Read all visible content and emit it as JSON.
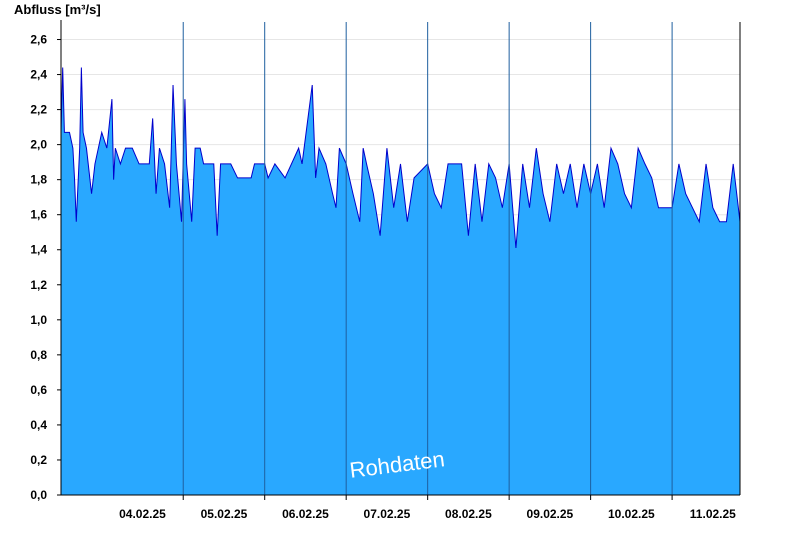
{
  "chart_data": {
    "type": "area",
    "ylabel": "Abfluss [m³/s]",
    "watermark": "Rohdaten",
    "ylim": [
      0,
      2.7
    ],
    "xlim": [
      "2025-02-03T12:00",
      "2025-02-11T20:00"
    ],
    "y_ticks": [
      "0,0",
      "0,2",
      "0,4",
      "0,6",
      "0,8",
      "1,0",
      "1,2",
      "1,4",
      "1,6",
      "1,8",
      "2,0",
      "2,2",
      "2,4",
      "2,6"
    ],
    "x_ticks": [
      "04.02.25",
      "05.02.25",
      "06.02.25",
      "07.02.25",
      "08.02.25",
      "09.02.25",
      "10.02.25",
      "11.02.25"
    ],
    "grid": true,
    "fill_color": "#29A8FF",
    "line_color": "#0000CC",
    "series": [
      {
        "values": [
          [
            "2025-02-03T12:00",
            2.07
          ],
          [
            "2025-02-03T12:30",
            2.44
          ],
          [
            "2025-02-03T13:00",
            2.07
          ],
          [
            "2025-02-03T14:30",
            2.07
          ],
          [
            "2025-02-03T15:30",
            1.98
          ],
          [
            "2025-02-03T16:00",
            1.8
          ],
          [
            "2025-02-03T16:30",
            1.56
          ],
          [
            "2025-02-03T17:30",
            1.98
          ],
          [
            "2025-02-03T18:00",
            2.44
          ],
          [
            "2025-02-03T18:30",
            2.07
          ],
          [
            "2025-02-03T19:30",
            1.98
          ],
          [
            "2025-02-03T21:00",
            1.72
          ],
          [
            "2025-02-03T22:00",
            1.89
          ],
          [
            "2025-02-04T00:00",
            2.07
          ],
          [
            "2025-02-04T01:30",
            1.98
          ],
          [
            "2025-02-04T03:00",
            2.26
          ],
          [
            "2025-02-04T03:30",
            1.8
          ],
          [
            "2025-02-04T04:00",
            1.98
          ],
          [
            "2025-02-04T05:30",
            1.89
          ],
          [
            "2025-02-04T07:00",
            1.98
          ],
          [
            "2025-02-04T09:00",
            1.98
          ],
          [
            "2025-02-04T11:00",
            1.89
          ],
          [
            "2025-02-04T14:00",
            1.89
          ],
          [
            "2025-02-04T15:00",
            2.15
          ],
          [
            "2025-02-04T16:00",
            1.72
          ],
          [
            "2025-02-04T17:00",
            1.98
          ],
          [
            "2025-02-04T18:30",
            1.89
          ],
          [
            "2025-02-04T20:00",
            1.64
          ],
          [
            "2025-02-04T21:00",
            2.34
          ],
          [
            "2025-02-04T22:00",
            1.89
          ],
          [
            "2025-02-04T23:30",
            1.56
          ],
          [
            "2025-02-05T00:30",
            2.26
          ],
          [
            "2025-02-05T01:00",
            1.89
          ],
          [
            "2025-02-05T02:30",
            1.56
          ],
          [
            "2025-02-05T03:30",
            1.98
          ],
          [
            "2025-02-05T05:00",
            1.98
          ],
          [
            "2025-02-05T06:00",
            1.89
          ],
          [
            "2025-02-05T09:00",
            1.89
          ],
          [
            "2025-02-05T10:00",
            1.48
          ],
          [
            "2025-02-05T11:00",
            1.89
          ],
          [
            "2025-02-05T14:00",
            1.89
          ],
          [
            "2025-02-05T16:00",
            1.81
          ],
          [
            "2025-02-05T20:00",
            1.81
          ],
          [
            "2025-02-05T21:00",
            1.89
          ],
          [
            "2025-02-06T00:00",
            1.89
          ],
          [
            "2025-02-06T01:00",
            1.81
          ],
          [
            "2025-02-06T03:00",
            1.89
          ],
          [
            "2025-02-06T06:00",
            1.81
          ],
          [
            "2025-02-06T10:00",
            1.98
          ],
          [
            "2025-02-06T11:00",
            1.89
          ],
          [
            "2025-02-06T14:00",
            2.34
          ],
          [
            "2025-02-06T15:00",
            1.81
          ],
          [
            "2025-02-06T16:00",
            1.98
          ],
          [
            "2025-02-06T18:00",
            1.89
          ],
          [
            "2025-02-06T20:00",
            1.72
          ],
          [
            "2025-02-06T21:00",
            1.64
          ],
          [
            "2025-02-06T22:00",
            1.98
          ],
          [
            "2025-02-07T00:00",
            1.89
          ],
          [
            "2025-02-07T02:00",
            1.72
          ],
          [
            "2025-02-07T04:00",
            1.56
          ],
          [
            "2025-02-07T05:00",
            1.98
          ],
          [
            "2025-02-07T06:00",
            1.89
          ],
          [
            "2025-02-07T08:00",
            1.72
          ],
          [
            "2025-02-07T10:00",
            1.48
          ],
          [
            "2025-02-07T12:00",
            1.98
          ],
          [
            "2025-02-07T14:00",
            1.64
          ],
          [
            "2025-02-07T16:00",
            1.89
          ],
          [
            "2025-02-07T18:00",
            1.56
          ],
          [
            "2025-02-07T20:00",
            1.81
          ],
          [
            "2025-02-08T00:00",
            1.89
          ],
          [
            "2025-02-08T02:00",
            1.72
          ],
          [
            "2025-02-08T04:00",
            1.64
          ],
          [
            "2025-02-08T06:00",
            1.89
          ],
          [
            "2025-02-08T10:00",
            1.89
          ],
          [
            "2025-02-08T12:00",
            1.48
          ],
          [
            "2025-02-08T14:00",
            1.89
          ],
          [
            "2025-02-08T16:00",
            1.56
          ],
          [
            "2025-02-08T18:00",
            1.89
          ],
          [
            "2025-02-08T20:00",
            1.81
          ],
          [
            "2025-02-08T22:00",
            1.64
          ],
          [
            "2025-02-09T00:00",
            1.89
          ],
          [
            "2025-02-09T02:00",
            1.41
          ],
          [
            "2025-02-09T04:00",
            1.89
          ],
          [
            "2025-02-09T06:00",
            1.64
          ],
          [
            "2025-02-09T08:00",
            1.98
          ],
          [
            "2025-02-09T10:00",
            1.72
          ],
          [
            "2025-02-09T12:00",
            1.56
          ],
          [
            "2025-02-09T14:00",
            1.89
          ],
          [
            "2025-02-09T16:00",
            1.72
          ],
          [
            "2025-02-09T18:00",
            1.89
          ],
          [
            "2025-02-09T20:00",
            1.64
          ],
          [
            "2025-02-09T22:00",
            1.89
          ],
          [
            "2025-02-10T00:00",
            1.72
          ],
          [
            "2025-02-10T02:00",
            1.89
          ],
          [
            "2025-02-10T04:00",
            1.64
          ],
          [
            "2025-02-10T06:00",
            1.98
          ],
          [
            "2025-02-10T08:00",
            1.89
          ],
          [
            "2025-02-10T10:00",
            1.72
          ],
          [
            "2025-02-10T12:00",
            1.64
          ],
          [
            "2025-02-10T14:00",
            1.98
          ],
          [
            "2025-02-10T16:00",
            1.89
          ],
          [
            "2025-02-10T18:00",
            1.81
          ],
          [
            "2025-02-10T20:00",
            1.64
          ],
          [
            "2025-02-11T00:00",
            1.64
          ],
          [
            "2025-02-11T02:00",
            1.89
          ],
          [
            "2025-02-11T04:00",
            1.72
          ],
          [
            "2025-02-11T06:00",
            1.64
          ],
          [
            "2025-02-11T08:00",
            1.56
          ],
          [
            "2025-02-11T10:00",
            1.89
          ],
          [
            "2025-02-11T12:00",
            1.64
          ],
          [
            "2025-02-11T14:00",
            1.56
          ],
          [
            "2025-02-11T16:00",
            1.56
          ],
          [
            "2025-02-11T18:00",
            1.89
          ],
          [
            "2025-02-11T20:00",
            1.56
          ]
        ]
      }
    ]
  }
}
